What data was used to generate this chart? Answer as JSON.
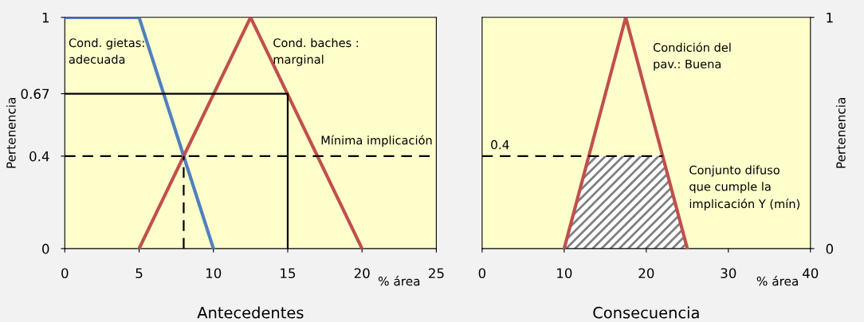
{
  "chart_data": [
    {
      "type": "line",
      "title": "Antecedentes",
      "xlabel": "% área",
      "ylabel": "Pertenencia",
      "xlim": [
        0,
        25
      ],
      "xticks": [
        0,
        5,
        10,
        15,
        20,
        25
      ],
      "ylim": [
        0,
        1
      ],
      "yticks": [
        0,
        0.4,
        0.67,
        1
      ],
      "grid": false,
      "legend": false,
      "series": [
        {
          "color": "#4f81bd",
          "x": [
            0,
            5,
            10
          ],
          "values": [
            1,
            1,
            0
          ]
        },
        {
          "color": "#c0504d",
          "x": [
            5,
            12.5,
            20
          ],
          "values": [
            0,
            1,
            0
          ]
        },
        {
          "color": "#000000",
          "x": [
            0,
            15,
            15
          ],
          "values": [
            0.67,
            0.67,
            0
          ]
        },
        {
          "color": "#000000",
          "line_style": "dashed",
          "x": [
            8,
            8
          ],
          "values": [
            0,
            0.4
          ]
        }
      ],
      "ref_lines": [
        {
          "axis": "y",
          "value": 0.4,
          "label": "Mínima implicación",
          "color": "#000000",
          "line_style": "dashed"
        }
      ],
      "annotations": [
        "Cond. gietas:\nadecuada",
        "Cond. baches :\nmarginal"
      ]
    },
    {
      "type": "line",
      "title": "Consecuencia",
      "xlabel": "% área",
      "ylabel": "Pertenencia",
      "xlim": [
        0,
        40
      ],
      "xticks": [
        0,
        10,
        20,
        30,
        40
      ],
      "ylim": [
        0,
        1
      ],
      "yticks": [
        0,
        1
      ],
      "grid": false,
      "legend": false,
      "series": [
        {
          "type": "area",
          "color": "#808080",
          "x": [
            10,
            13,
            22,
            25
          ],
          "values": [
            0,
            0.4,
            0.4,
            0
          ]
        },
        {
          "color": "#c0504d",
          "x": [
            10,
            17.5,
            25
          ],
          "values": [
            0,
            1,
            0
          ]
        },
        {
          "color": "#000000",
          "line_style": "dashed",
          "x": [
            0,
            22
          ],
          "values": [
            0.4,
            0.4
          ]
        }
      ],
      "annotations": [
        {
          "text": "0.4",
          "x": 1,
          "y": 0.4
        },
        "Condición del\npav.: Buena",
        "Conjunto difuso\nque cumple la\nimplicación Y (mín)"
      ]
    }
  ]
}
